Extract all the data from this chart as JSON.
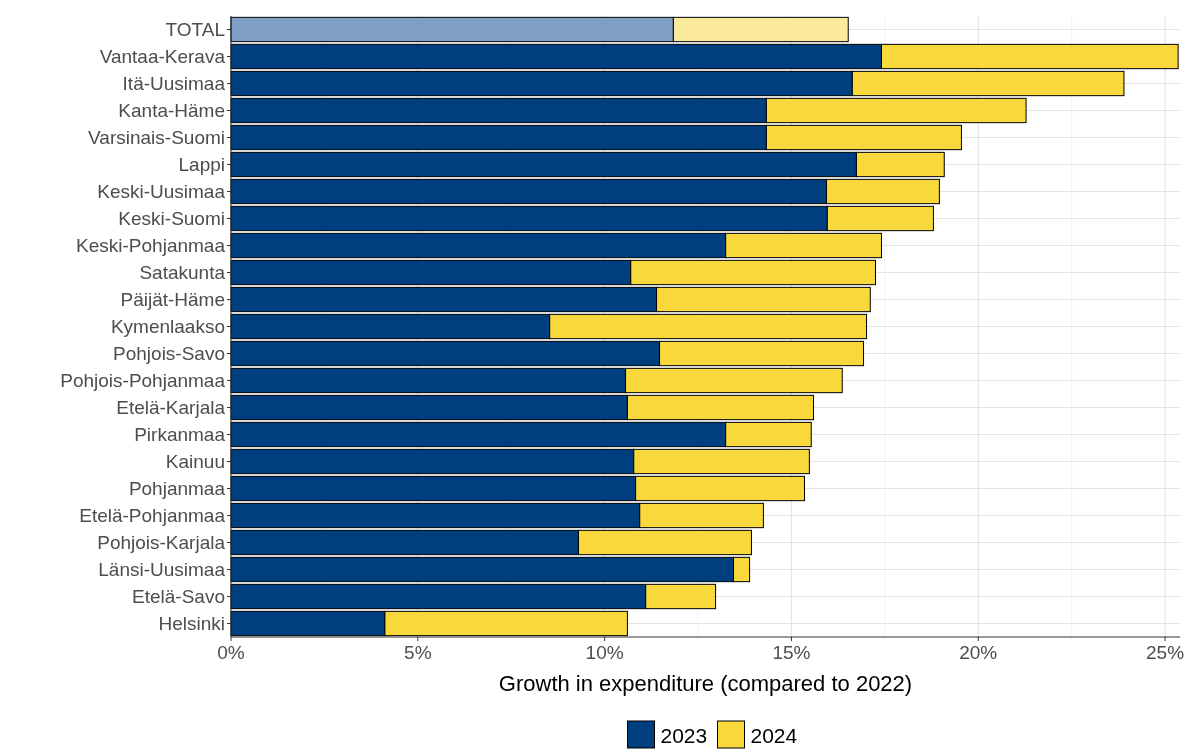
{
  "chart_data": {
    "type": "bar",
    "orientation": "horizontal",
    "stacked": true,
    "xlabel": "Growth in expenditure (compared to 2022)",
    "categories": [
      "TOTAL",
      "Vantaa-Kerava",
      "Itä-Uusimaa",
      "Kanta-Häme",
      "Varsinais-Suomi",
      "Lappi",
      "Keski-Uusimaa",
      "Keski-Suomi",
      "Keski-Pohjanmaa",
      "Satakunta",
      "Päijät-Häme",
      "Kymenlaakso",
      "Pohjois-Savo",
      "Pohjois-Pohjanmaa",
      "Etelä-Karjala",
      "Pirkanmaa",
      "Kainuu",
      "Pohjanmaa",
      "Etelä-Pohjanmaa",
      "Pohjois-Karjala",
      "Länsi-Uusimaa",
      "Etelä-Savo",
      "Helsinki"
    ],
    "series": [
      {
        "name": "2023",
        "color": "#003f7f",
        "colors": [
          "#7f9fc5",
          "#003f7f",
          "#003f7f",
          "#003f7f",
          "#003f7f",
          "#003f7f",
          "#003f7f",
          "#003f7f",
          "#003f7f",
          "#003f7f",
          "#003f7f",
          "#003f7f",
          "#003f7f",
          "#003f7f",
          "#003f7f",
          "#003f7f",
          "#003f7f",
          "#003f7f",
          "#003f7f",
          "#003f7f",
          "#003f7f",
          "#003f7f",
          "#003f7f"
        ],
        "values": [
          11.84,
          17.41,
          16.63,
          14.33,
          14.33,
          16.74,
          15.94,
          15.96,
          13.24,
          10.7,
          11.39,
          8.53,
          11.47,
          10.56,
          10.61,
          13.24,
          10.78,
          10.83,
          10.94,
          9.3,
          13.45,
          11.1,
          4.12
        ]
      },
      {
        "name": "2024",
        "color": "#f9d83c",
        "colors": [
          "#fbea9e",
          "#f9d83c",
          "#f9d83c",
          "#f9d83c",
          "#f9d83c",
          "#f9d83c",
          "#f9d83c",
          "#f9d83c",
          "#f9d83c",
          "#f9d83c",
          "#f9d83c",
          "#f9d83c",
          "#f9d83c",
          "#f9d83c",
          "#f9d83c",
          "#f9d83c",
          "#f9d83c",
          "#f9d83c",
          "#f9d83c",
          "#f9d83c",
          "#f9d83c",
          "#f9d83c",
          "#f9d83c"
        ],
        "values": [
          4.68,
          7.94,
          7.27,
          6.95,
          5.22,
          2.35,
          3.02,
          2.84,
          4.17,
          6.55,
          5.72,
          8.48,
          5.46,
          5.8,
          4.98,
          2.29,
          4.7,
          4.52,
          3.31,
          4.63,
          0.43,
          1.87,
          6.49
        ]
      }
    ],
    "xlim": [
      0,
      25.4
    ],
    "xticks": [
      {
        "value": 0,
        "label": "0%"
      },
      {
        "value": 5,
        "label": "5%"
      },
      {
        "value": 10,
        "label": "10%"
      },
      {
        "value": 15,
        "label": "15%"
      },
      {
        "value": 20,
        "label": "20%"
      },
      {
        "value": 25,
        "label": "25%"
      }
    ],
    "grid": true,
    "legend": "bottom"
  }
}
